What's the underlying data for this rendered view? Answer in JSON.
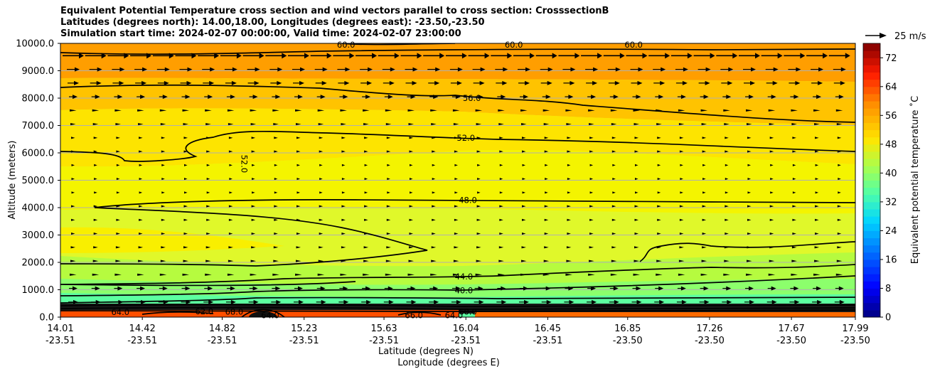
{
  "chart_data": {
    "type": "contour",
    "title_lines": [
      "Equivalent Potential Temperature cross section and wind vectors parallel to cross section: CrosssectionB",
      "Latitudes (degrees north): 14.00,18.00, Longitudes (degrees east): -23.50,-23.50",
      "Simulation start time: 2024-02-07 00:00:00, Valid time: 2024-02-07 23:00:00"
    ],
    "ylabel": "Altitude (meters)",
    "xlabel_lat": "Latitude (degrees N)",
    "xlabel_lon": "Longitude (degrees E)",
    "ylim": [
      0,
      10000
    ],
    "y_ticks": [
      "0.0",
      "1000.0",
      "2000.0",
      "3000.0",
      "4000.0",
      "5000.0",
      "6000.0",
      "7000.0",
      "8000.0",
      "9000.0",
      "10000.0"
    ],
    "y_tick_values": [
      0,
      1000,
      2000,
      3000,
      4000,
      5000,
      6000,
      7000,
      8000,
      9000,
      10000
    ],
    "xlim": [
      14.01,
      17.99
    ],
    "x_tick_values": [
      14.01,
      14.42,
      14.82,
      15.23,
      15.63,
      16.04,
      16.45,
      16.85,
      17.26,
      17.67,
      17.99
    ],
    "x_ticks_lat": [
      "14.01",
      "14.42",
      "14.82",
      "15.23",
      "15.63",
      "16.04",
      "16.45",
      "16.85",
      "17.26",
      "17.67",
      "17.99"
    ],
    "x_ticks_lon": [
      "-23.51",
      "-23.51",
      "-23.51",
      "-23.51",
      "-23.51",
      "-23.51",
      "-23.51",
      "-23.50",
      "-23.50",
      "-23.50",
      "-23.50"
    ],
    "colorbar": {
      "label": "Equivalent potential temperature ˚C",
      "min": 0,
      "max": 76,
      "ticks": [
        "0",
        "8",
        "16",
        "24",
        "32",
        "40",
        "48",
        "56",
        "64",
        "72"
      ],
      "tick_values": [
        0,
        8,
        16,
        24,
        32,
        40,
        48,
        56,
        64,
        72
      ]
    },
    "contour_labels": [
      {
        "text": "60.0",
        "lat": 15.44,
        "alt": 9950
      },
      {
        "text": "60.0",
        "lat": 16.28,
        "alt": 9950
      },
      {
        "text": "60.0",
        "lat": 16.88,
        "alt": 9950
      },
      {
        "text": "56.0",
        "lat": 16.07,
        "alt": 8000
      },
      {
        "text": "52.0",
        "lat": 16.04,
        "alt": 6550
      },
      {
        "text": "52.0",
        "lat": 14.93,
        "alt": 5600
      },
      {
        "text": "48.0",
        "lat": 16.05,
        "alt": 4270
      },
      {
        "text": "44.0",
        "lat": 16.03,
        "alt": 1480
      },
      {
        "text": "40.0",
        "lat": 16.03,
        "alt": 980
      },
      {
        "text": "64.0",
        "lat": 14.31,
        "alt": 180
      },
      {
        "text": "62.0",
        "lat": 14.73,
        "alt": 210
      },
      {
        "text": "68.0",
        "lat": 14.88,
        "alt": 200
      },
      {
        "text": "64.0",
        "lat": 15.06,
        "alt": 70
      },
      {
        "text": "64.0",
        "lat": 15.98,
        "alt": 60
      },
      {
        "text": "66.0",
        "lat": 15.78,
        "alt": 70
      },
      {
        "text": "60.0",
        "lat": 16.05,
        "alt": 200
      }
    ],
    "wind_key": {
      "label": "25 m/s"
    }
  }
}
